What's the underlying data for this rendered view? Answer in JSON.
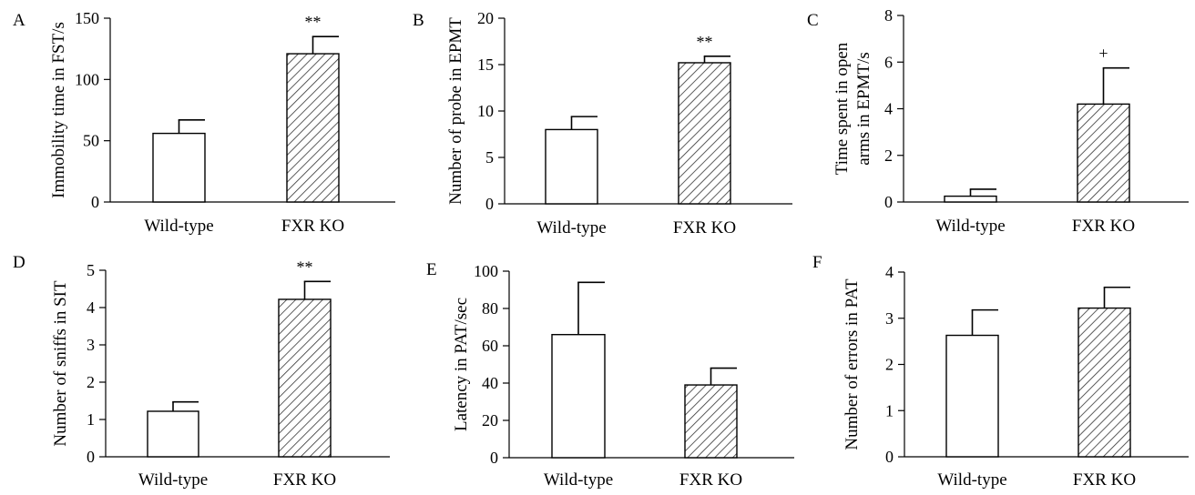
{
  "figure": {
    "colors": {
      "ink": "#000000",
      "wild_type_fill": "#ffffff",
      "hatch": "#333333"
    },
    "fill_patterns": {
      "Wild-type": "open",
      "FXR KO": "diagonal-hatch"
    }
  },
  "chart_data": [
    {
      "panel": "A",
      "type": "bar",
      "categories": [
        "Wild-type",
        "FXR KO"
      ],
      "values": [
        56,
        121
      ],
      "errors": [
        11,
        14
      ],
      "annotations": [
        "",
        "**"
      ],
      "ylabel": "Immobility time in FST/s",
      "ylim": [
        0,
        150
      ],
      "yticks": [
        0,
        50,
        100,
        150
      ]
    },
    {
      "panel": "B",
      "type": "bar",
      "categories": [
        "Wild-type",
        "FXR KO"
      ],
      "values": [
        8,
        15.2
      ],
      "errors": [
        1.4,
        0.7
      ],
      "annotations": [
        "",
        "**"
      ],
      "ylabel": "Number of probe in EPMT",
      "ylim": [
        0,
        20
      ],
      "yticks": [
        0,
        5,
        10,
        15,
        20
      ]
    },
    {
      "panel": "C",
      "type": "bar",
      "categories": [
        "Wild-type",
        "FXR KO"
      ],
      "values": [
        0.25,
        4.2
      ],
      "errors": [
        0.3,
        1.55
      ],
      "annotations": [
        "",
        "+"
      ],
      "ylabel": "Time spent in open arms in EPMT/s",
      "ylabel_lines": [
        "Time spent in open",
        "arms in EPMT/s"
      ],
      "ylim": [
        0,
        8
      ],
      "yticks": [
        0,
        2,
        4,
        6,
        8
      ]
    },
    {
      "panel": "D",
      "type": "bar",
      "categories": [
        "Wild-type",
        "FXR KO"
      ],
      "values": [
        1.22,
        4.22
      ],
      "errors": [
        0.25,
        0.48
      ],
      "annotations": [
        "",
        "**"
      ],
      "ylabel": "Number of sniffs in SIT",
      "ylim": [
        0,
        5
      ],
      "yticks": [
        0,
        1,
        2,
        3,
        4,
        5
      ]
    },
    {
      "panel": "E",
      "type": "bar",
      "categories": [
        "Wild-type",
        "FXR KO"
      ],
      "values": [
        66,
        39
      ],
      "errors": [
        28,
        9
      ],
      "annotations": [
        "",
        ""
      ],
      "ylabel": "Latency in PAT/sec",
      "ylim": [
        0,
        100
      ],
      "yticks": [
        0,
        20,
        40,
        60,
        80,
        100
      ]
    },
    {
      "panel": "F",
      "type": "bar",
      "categories": [
        "Wild-type",
        "FXR KO"
      ],
      "values": [
        2.63,
        3.22
      ],
      "errors": [
        0.55,
        0.45
      ],
      "annotations": [
        "",
        ""
      ],
      "ylabel": "Number of errors in PAT",
      "ylim": [
        0,
        4
      ],
      "yticks": [
        0,
        1,
        2,
        3,
        4
      ]
    }
  ]
}
